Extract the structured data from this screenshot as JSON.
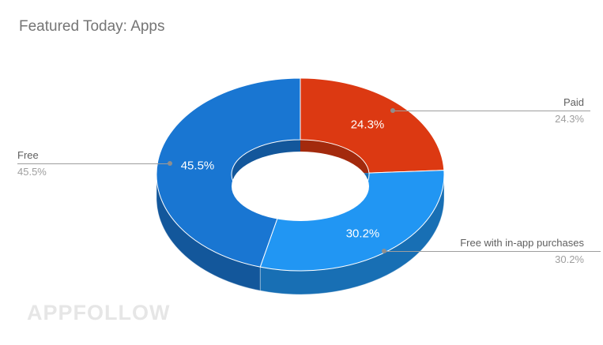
{
  "page": {
    "background": "#ffffff"
  },
  "header": {
    "title": "Featured Today: Apps",
    "title_color": "#757575"
  },
  "watermark": {
    "text": "APPFOLLOW"
  },
  "chart_data": {
    "type": "pie",
    "variant": "3d-donut",
    "title": "Featured Today: Apps",
    "start_angle_deg": 0,
    "direction": "clockwise",
    "donut_hole": true,
    "legend_position": "callout-labels",
    "leader_line_color": "#9e9e9e",
    "callout_name_color": "#5f5f5f",
    "callout_pct_color": "#9e9e9e",
    "slice_label_color": "#ffffff",
    "slices": [
      {
        "label": "Paid",
        "value_pct": 24.3,
        "display": "24.3%",
        "color": "#dc3912",
        "callout_side": "right"
      },
      {
        "label": "Free with in-app purchases",
        "value_pct": 30.2,
        "display": "30.2%",
        "color": "#2196f3",
        "callout_side": "right"
      },
      {
        "label": "Free",
        "value_pct": 45.5,
        "display": "45.5%",
        "color": "#1976d2",
        "callout_side": "left"
      }
    ]
  }
}
